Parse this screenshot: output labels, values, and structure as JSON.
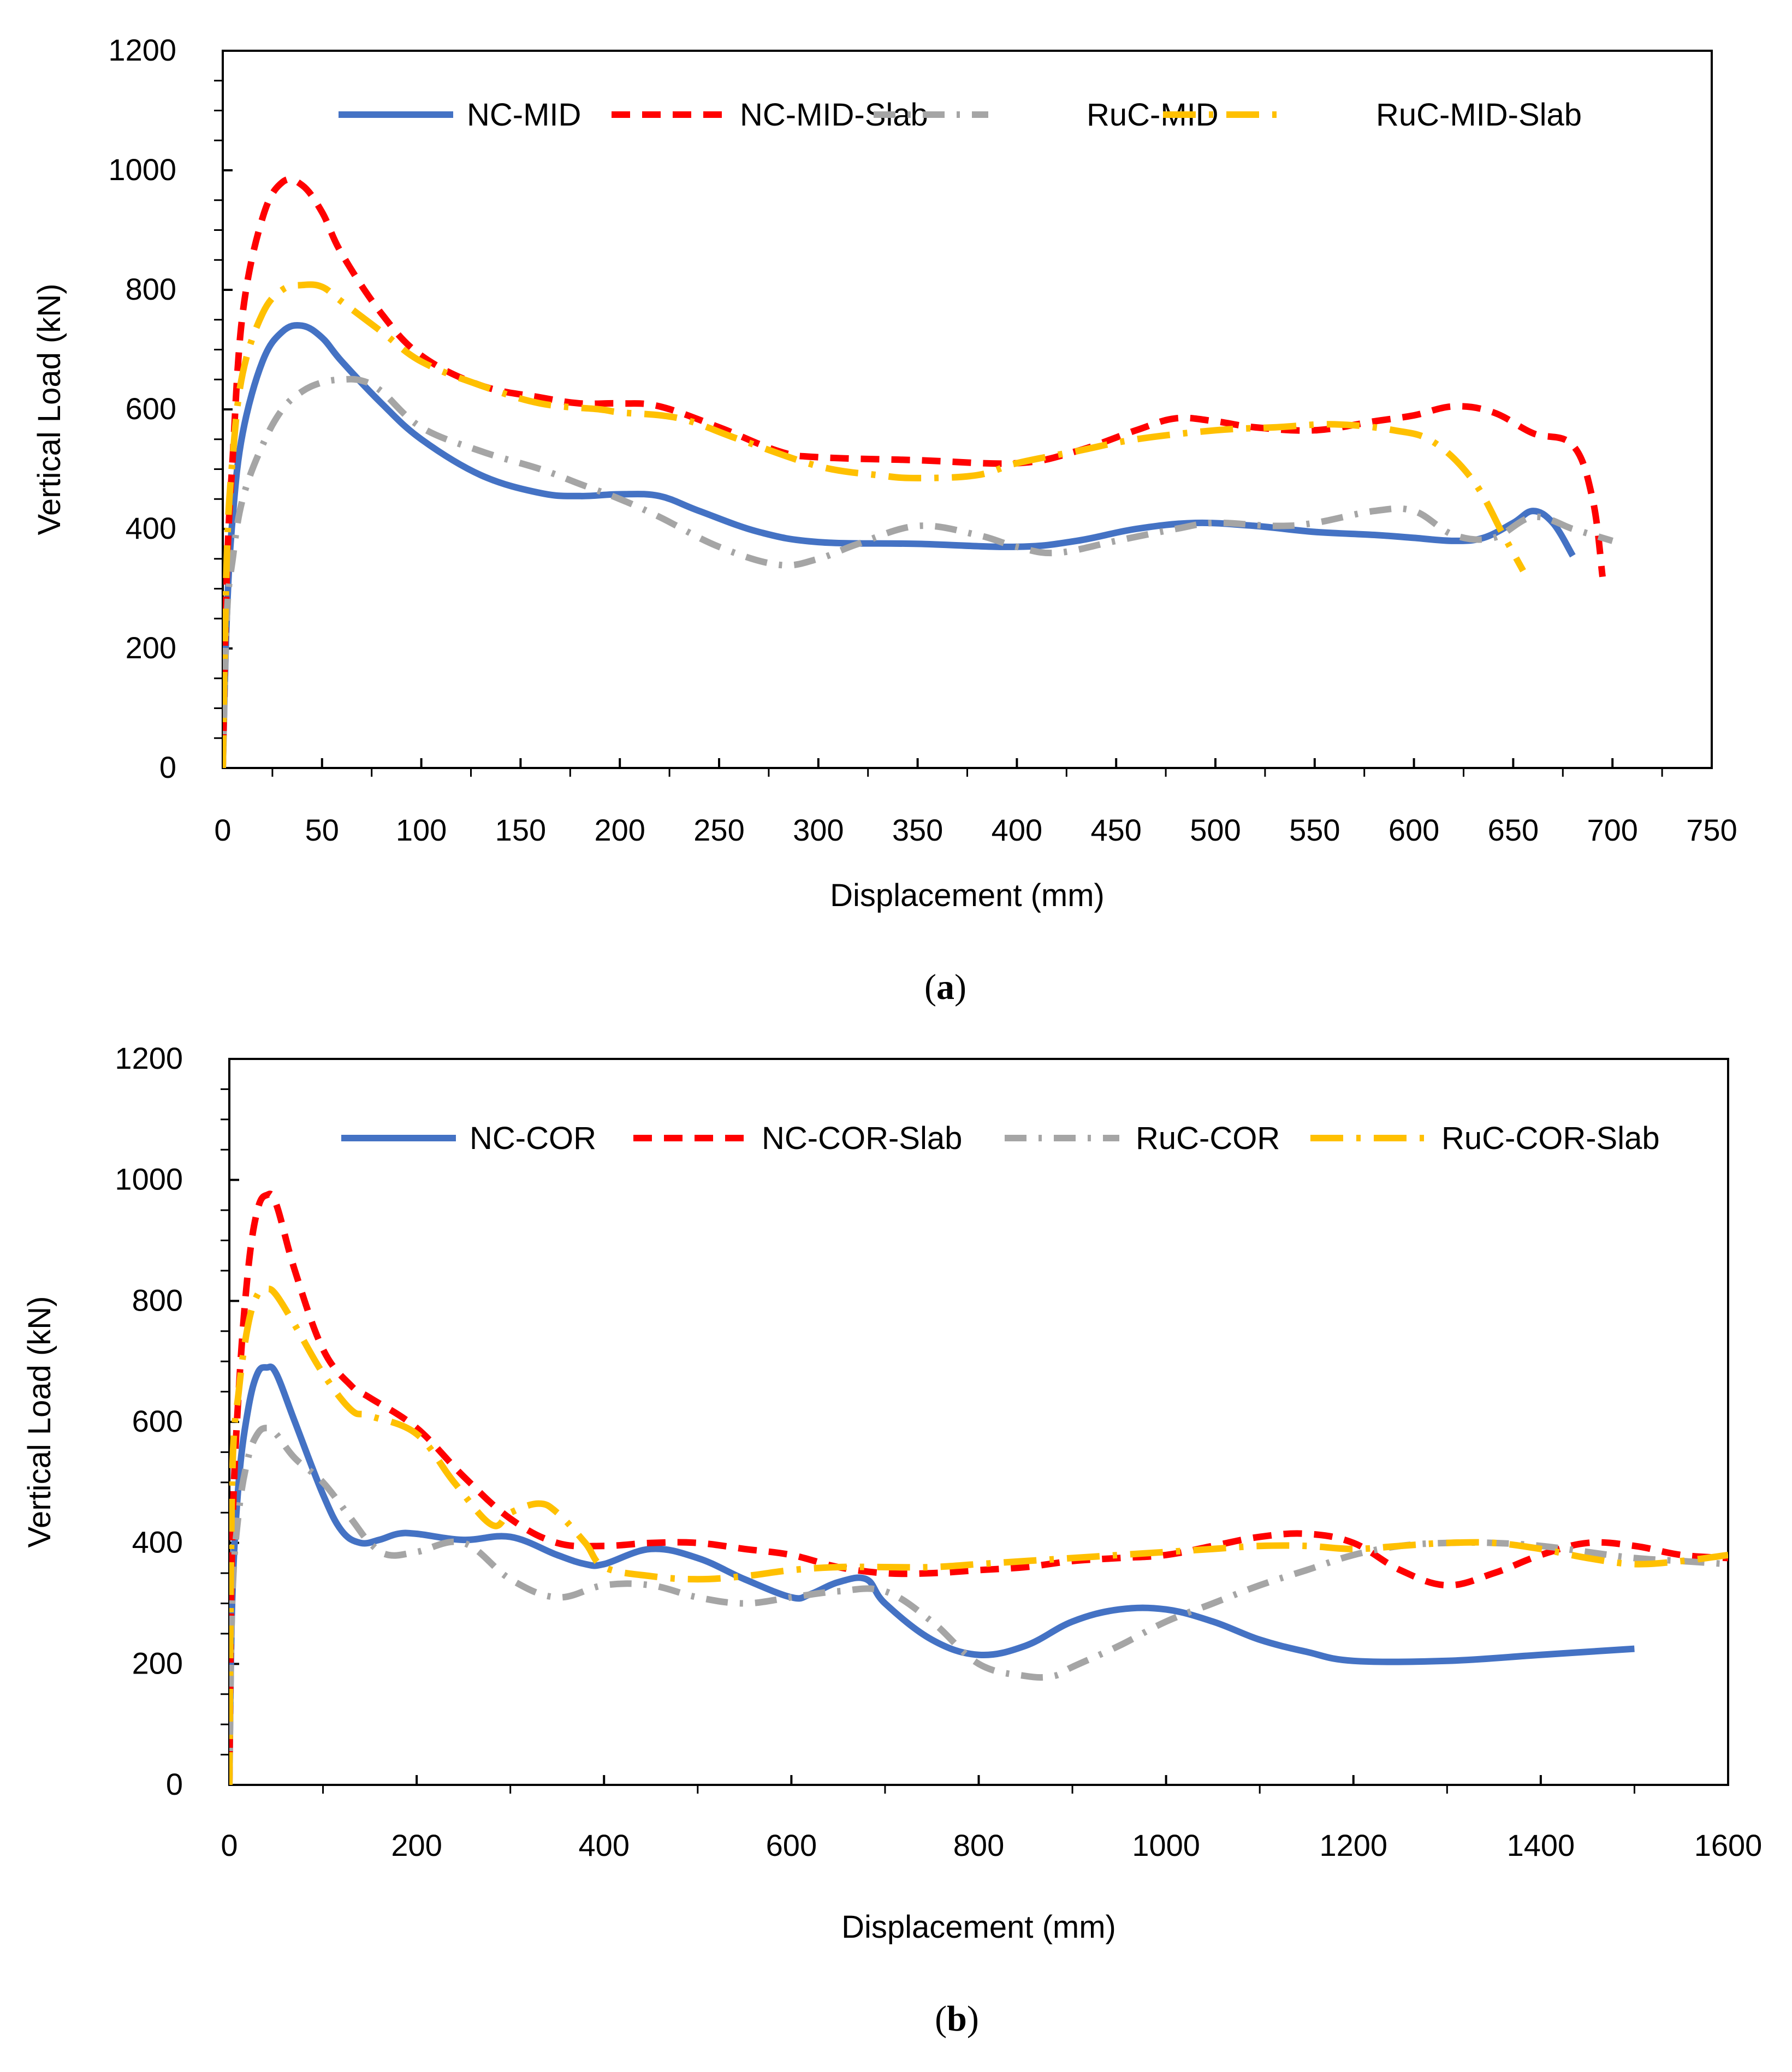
{
  "chart_data": [
    {
      "type": "line",
      "caption_letter": "a",
      "xlabel": "Displacement (mm)",
      "ylabel": "Vertical Load (kN)",
      "xlim": [
        0,
        750
      ],
      "ylim": [
        0,
        1200
      ],
      "xticks": [
        "0",
        "50",
        "100",
        "150",
        "200",
        "250",
        "300",
        "350",
        "400",
        "450",
        "500",
        "550",
        "600",
        "650",
        "700",
        "750"
      ],
      "yticks": [
        "0",
        "200",
        "400",
        "600",
        "800",
        "1000",
        "1200"
      ],
      "legend_position": "top",
      "series": [
        {
          "name": "NC-MID",
          "color": "#4472C4",
          "dash": "solid",
          "x": [
            0,
            2,
            5,
            10,
            20,
            30,
            40,
            50,
            60,
            80,
            100,
            130,
            160,
            180,
            200,
            220,
            240,
            270,
            300,
            350,
            400,
            430,
            460,
            490,
            520,
            550,
            580,
            600,
            620,
            635,
            650,
            660,
            670,
            680
          ],
          "y": [
            0,
            250,
            420,
            560,
            680,
            730,
            740,
            720,
            680,
            610,
            550,
            490,
            460,
            455,
            458,
            455,
            430,
            395,
            378,
            375,
            370,
            380,
            400,
            410,
            405,
            395,
            390,
            385,
            380,
            385,
            410,
            430,
            410,
            355
          ]
        },
        {
          "name": "NC-MID-Slab",
          "color": "#FF0000",
          "dash": "dashed",
          "x": [
            0,
            2,
            5,
            10,
            20,
            30,
            40,
            50,
            60,
            80,
            100,
            130,
            160,
            180,
            200,
            220,
            250,
            280,
            300,
            350,
            400,
            430,
            460,
            480,
            500,
            520,
            550,
            580,
            600,
            620,
            640,
            660,
            680,
            690,
            695
          ],
          "y": [
            0,
            320,
            520,
            760,
            920,
            980,
            975,
            930,
            860,
            760,
            690,
            640,
            620,
            610,
            610,
            605,
            570,
            530,
            520,
            515,
            510,
            530,
            565,
            585,
            580,
            570,
            565,
            580,
            590,
            605,
            595,
            560,
            540,
            450,
            320
          ]
        },
        {
          "name": "RuC-MID",
          "color": "#A5A5A5",
          "dash": "dashdot",
          "x": [
            0,
            2,
            5,
            10,
            20,
            30,
            40,
            50,
            60,
            70,
            80,
            100,
            130,
            160,
            180,
            200,
            220,
            250,
            280,
            300,
            320,
            350,
            380,
            400,
            420,
            450,
            480,
            500,
            530,
            550,
            580,
            600,
            620,
            640,
            660,
            680,
            690,
            700
          ],
          "y": [
            0,
            250,
            350,
            450,
            540,
            600,
            630,
            645,
            650,
            648,
            630,
            570,
            530,
            500,
            475,
            450,
            420,
            370,
            340,
            350,
            375,
            405,
            390,
            370,
            360,
            380,
            400,
            410,
            405,
            410,
            430,
            430,
            390,
            385,
            420,
            400,
            390,
            380
          ]
        },
        {
          "name": "RuC-MID-Slab",
          "color": "#FFC000",
          "dash": "longdashdot",
          "x": [
            0,
            2,
            5,
            10,
            20,
            30,
            40,
            50,
            60,
            80,
            100,
            130,
            160,
            190,
            200,
            230,
            260,
            300,
            330,
            350,
            380,
            400,
            430,
            460,
            500,
            530,
            560,
            590,
            610,
            630,
            645,
            655
          ],
          "y": [
            0,
            350,
            520,
            660,
            760,
            800,
            808,
            805,
            780,
            730,
            680,
            640,
            610,
            600,
            595,
            585,
            550,
            505,
            490,
            485,
            490,
            510,
            530,
            550,
            565,
            570,
            575,
            565,
            545,
            480,
            390,
            330
          ]
        }
      ]
    },
    {
      "type": "line",
      "caption_letter": "b",
      "xlabel": "Displacement (mm)",
      "ylabel": "Vertical Load (kN)",
      "xlim": [
        0,
        1600
      ],
      "ylim": [
        0,
        1200
      ],
      "xticks": [
        "0",
        "200",
        "400",
        "600",
        "800",
        "1000",
        "1200",
        "1400",
        "1600"
      ],
      "yticks": [
        "0",
        "200",
        "400",
        "600",
        "800",
        "1000",
        "1200"
      ],
      "legend_position": "top",
      "series": [
        {
          "name": "NC-COR",
          "color": "#4472C4",
          "dash": "solid",
          "x": [
            0,
            3,
            10,
            20,
            30,
            40,
            50,
            70,
            100,
            120,
            140,
            160,
            180,
            200,
            250,
            300,
            350,
            380,
            400,
            450,
            500,
            550,
            600,
            620,
            650,
            680,
            700,
            750,
            800,
            850,
            900,
            950,
            1000,
            1050,
            1100,
            1150,
            1200,
            1300,
            1400,
            1500
          ],
          "y": [
            0,
            300,
            500,
            620,
            680,
            690,
            680,
            600,
            480,
            420,
            400,
            405,
            415,
            415,
            405,
            410,
            380,
            365,
            365,
            390,
            375,
            340,
            310,
            315,
            335,
            340,
            300,
            240,
            215,
            230,
            270,
            290,
            290,
            270,
            240,
            220,
            205,
            205,
            215,
            225
          ]
        },
        {
          "name": "NC-COR-Slab",
          "color": "#FF0000",
          "dash": "dashed",
          "x": [
            0,
            3,
            10,
            20,
            30,
            40,
            50,
            70,
            100,
            130,
            150,
            200,
            250,
            300,
            350,
            400,
            450,
            500,
            550,
            600,
            650,
            700,
            750,
            800,
            850,
            900,
            950,
            1000,
            1050,
            1100,
            1150,
            1200,
            1250,
            1300,
            1350,
            1400,
            1450,
            1500,
            1550,
            1600
          ],
          "y": [
            0,
            400,
            650,
            850,
            950,
            975,
            960,
            850,
            720,
            660,
            640,
            590,
            510,
            440,
            400,
            395,
            400,
            400,
            390,
            380,
            360,
            350,
            350,
            355,
            360,
            370,
            375,
            380,
            395,
            410,
            415,
            400,
            355,
            330,
            350,
            380,
            400,
            395,
            380,
            375
          ]
        },
        {
          "name": "RuC-COR",
          "color": "#A5A5A5",
          "dash": "dashdot",
          "x": [
            0,
            3,
            10,
            20,
            30,
            40,
            50,
            70,
            100,
            130,
            150,
            170,
            200,
            250,
            300,
            350,
            400,
            450,
            500,
            550,
            600,
            650,
            700,
            750,
            800,
            850,
            880,
            900,
            950,
            1000,
            1050,
            1100,
            1150,
            1200,
            1250,
            1300,
            1350,
            1400,
            1450,
            1500,
            1550,
            1600
          ],
          "y": [
            0,
            300,
            450,
            540,
            580,
            590,
            580,
            540,
            500,
            440,
            400,
            380,
            385,
            400,
            340,
            310,
            330,
            330,
            310,
            300,
            310,
            320,
            320,
            270,
            200,
            180,
            180,
            195,
            230,
            270,
            300,
            330,
            355,
            380,
            395,
            400,
            400,
            395,
            385,
            375,
            370,
            365
          ]
        },
        {
          "name": "RuC-COR-Slab",
          "color": "#FFC000",
          "dash": "longdashdot",
          "x": [
            0,
            3,
            10,
            20,
            30,
            40,
            50,
            70,
            100,
            130,
            150,
            200,
            240,
            280,
            300,
            330,
            350,
            380,
            400,
            450,
            500,
            550,
            600,
            650,
            700,
            750,
            800,
            850,
            900,
            950,
            1000,
            1050,
            1100,
            1150,
            1200,
            1250,
            1300,
            1350,
            1400,
            1450,
            1500,
            1550,
            1600
          ],
          "y": [
            0,
            500,
            650,
            760,
            810,
            820,
            810,
            760,
            680,
            620,
            610,
            580,
            500,
            430,
            450,
            465,
            450,
            400,
            360,
            345,
            340,
            345,
            355,
            360,
            360,
            360,
            365,
            370,
            375,
            380,
            385,
            390,
            395,
            395,
            390,
            395,
            400,
            400,
            390,
            375,
            365,
            370,
            380
          ]
        }
      ]
    }
  ]
}
